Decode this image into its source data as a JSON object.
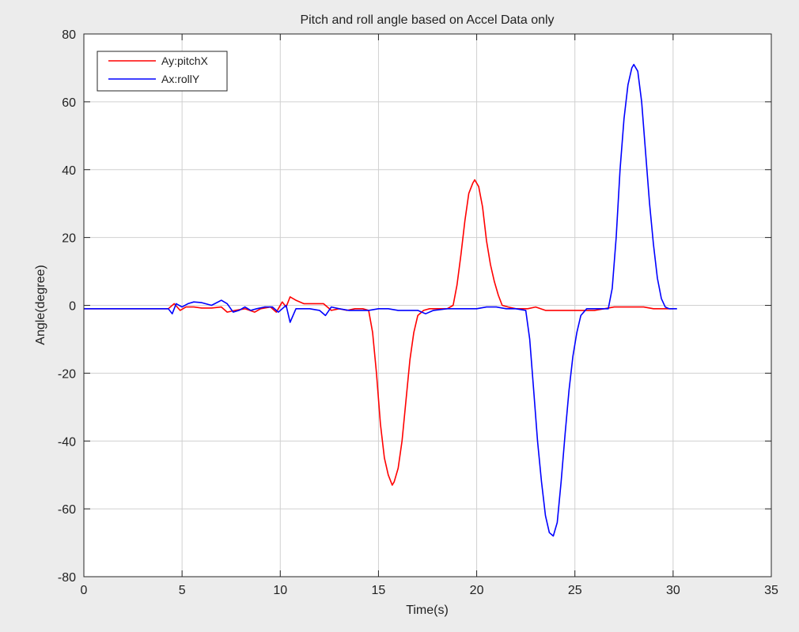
{
  "chart_data": {
    "type": "line",
    "title": "Pitch and roll angle based on Accel Data only",
    "xlabel": "Time(s)",
    "ylabel": "Angle(degree)",
    "xlim": [
      0,
      35
    ],
    "ylim": [
      -80,
      80
    ],
    "xticks": [
      0,
      5,
      10,
      15,
      20,
      25,
      30,
      35
    ],
    "yticks": [
      -80,
      -60,
      -40,
      -20,
      0,
      20,
      40,
      60,
      80
    ],
    "grid": true,
    "legend_position": "top-left",
    "series": [
      {
        "name": "Ay:pitchX",
        "color": "#ff0000",
        "x": [
          0,
          4.3,
          4.6,
          4.9,
          5.2,
          5.6,
          6.0,
          6.5,
          7.0,
          7.3,
          7.7,
          8.2,
          8.7,
          9.0,
          9.5,
          9.8,
          10.1,
          10.3,
          10.5,
          10.8,
          11.2,
          11.7,
          12.2,
          12.6,
          13.0,
          13.4,
          13.8,
          14.2,
          14.5,
          14.7,
          14.9,
          15.1,
          15.3,
          15.5,
          15.7,
          15.8,
          16.0,
          16.2,
          16.4,
          16.6,
          16.8,
          17.0,
          17.3,
          17.6,
          18.0,
          18.5,
          18.8,
          19.0,
          19.2,
          19.4,
          19.6,
          19.8,
          19.9,
          20.1,
          20.3,
          20.5,
          20.7,
          20.9,
          21.1,
          21.3,
          21.6,
          22.0,
          22.6,
          23.0,
          23.5,
          24.0,
          24.5,
          25.0,
          25.5,
          26.0,
          26.5,
          27.0,
          27.5,
          28.0,
          28.5,
          29.0,
          29.5,
          30.0
        ],
        "y": [
          -1,
          -1,
          0.5,
          -1.5,
          -0.5,
          -0.5,
          -0.8,
          -0.8,
          -0.5,
          -2,
          -1.5,
          -1,
          -2,
          -1,
          -0.5,
          -2,
          1,
          -0.5,
          2.5,
          1.5,
          0.5,
          0.5,
          0.5,
          -1.5,
          -1,
          -1.5,
          -1,
          -1,
          -1.5,
          -8,
          -20,
          -35,
          -45,
          -50,
          -53,
          -52,
          -48,
          -40,
          -28,
          -16,
          -8,
          -3,
          -1.5,
          -1,
          -1,
          -1,
          0,
          6,
          15,
          25,
          33,
          36,
          37,
          35,
          29,
          19,
          12,
          7,
          3,
          0,
          -0.5,
          -1,
          -1,
          -0.5,
          -1.5,
          -1.5,
          -1.5,
          -1.5,
          -1.5,
          -1.5,
          -1,
          -0.5,
          -0.5,
          -0.5,
          -0.5,
          -1,
          -1,
          -1
        ]
      },
      {
        "name": "Ax:rollY",
        "color": "#0000ff",
        "x": [
          0,
          4.0,
          4.3,
          4.5,
          4.7,
          5.0,
          5.3,
          5.6,
          6.0,
          6.5,
          7.0,
          7.3,
          7.6,
          7.9,
          8.2,
          8.5,
          8.8,
          9.2,
          9.6,
          9.9,
          10.1,
          10.3,
          10.5,
          10.8,
          11.0,
          11.5,
          12.0,
          12.3,
          12.6,
          13.0,
          13.5,
          14.0,
          14.5,
          15.0,
          15.5,
          16.0,
          16.5,
          17.0,
          17.4,
          17.8,
          18.5,
          19.0,
          19.5,
          20.0,
          20.5,
          21.0,
          21.5,
          22.0,
          22.5,
          22.7,
          22.9,
          23.1,
          23.3,
          23.5,
          23.7,
          23.9,
          24.1,
          24.3,
          24.5,
          24.7,
          24.9,
          25.1,
          25.3,
          25.6,
          26.0,
          26.5,
          26.7,
          26.9,
          27.1,
          27.3,
          27.5,
          27.7,
          27.9,
          28.0,
          28.2,
          28.4,
          28.6,
          28.8,
          29.0,
          29.2,
          29.4,
          29.6,
          29.8,
          30.0,
          30.2
        ],
        "y": [
          -1,
          -1,
          -1,
          -2.5,
          0.5,
          -0.5,
          0.5,
          1,
          0.8,
          0,
          1.5,
          0.5,
          -2,
          -1.5,
          -0.5,
          -1.5,
          -1,
          -0.5,
          -0.5,
          -2,
          -1,
          0,
          -5,
          -1,
          -1,
          -1,
          -1.5,
          -3,
          -0.5,
          -1,
          -1.5,
          -1.5,
          -1.5,
          -1,
          -1,
          -1.5,
          -1.5,
          -1.5,
          -2.5,
          -1.5,
          -1,
          -1,
          -1,
          -1,
          -0.5,
          -0.5,
          -1,
          -1,
          -1.5,
          -10,
          -25,
          -40,
          -52,
          -62,
          -67,
          -68,
          -64,
          -52,
          -38,
          -25,
          -15,
          -8,
          -3,
          -1,
          -1,
          -1,
          -1,
          5,
          20,
          40,
          55,
          65,
          70,
          71,
          69,
          60,
          45,
          30,
          18,
          8,
          2,
          -0.5,
          -1,
          -1,
          -1
        ]
      }
    ]
  }
}
